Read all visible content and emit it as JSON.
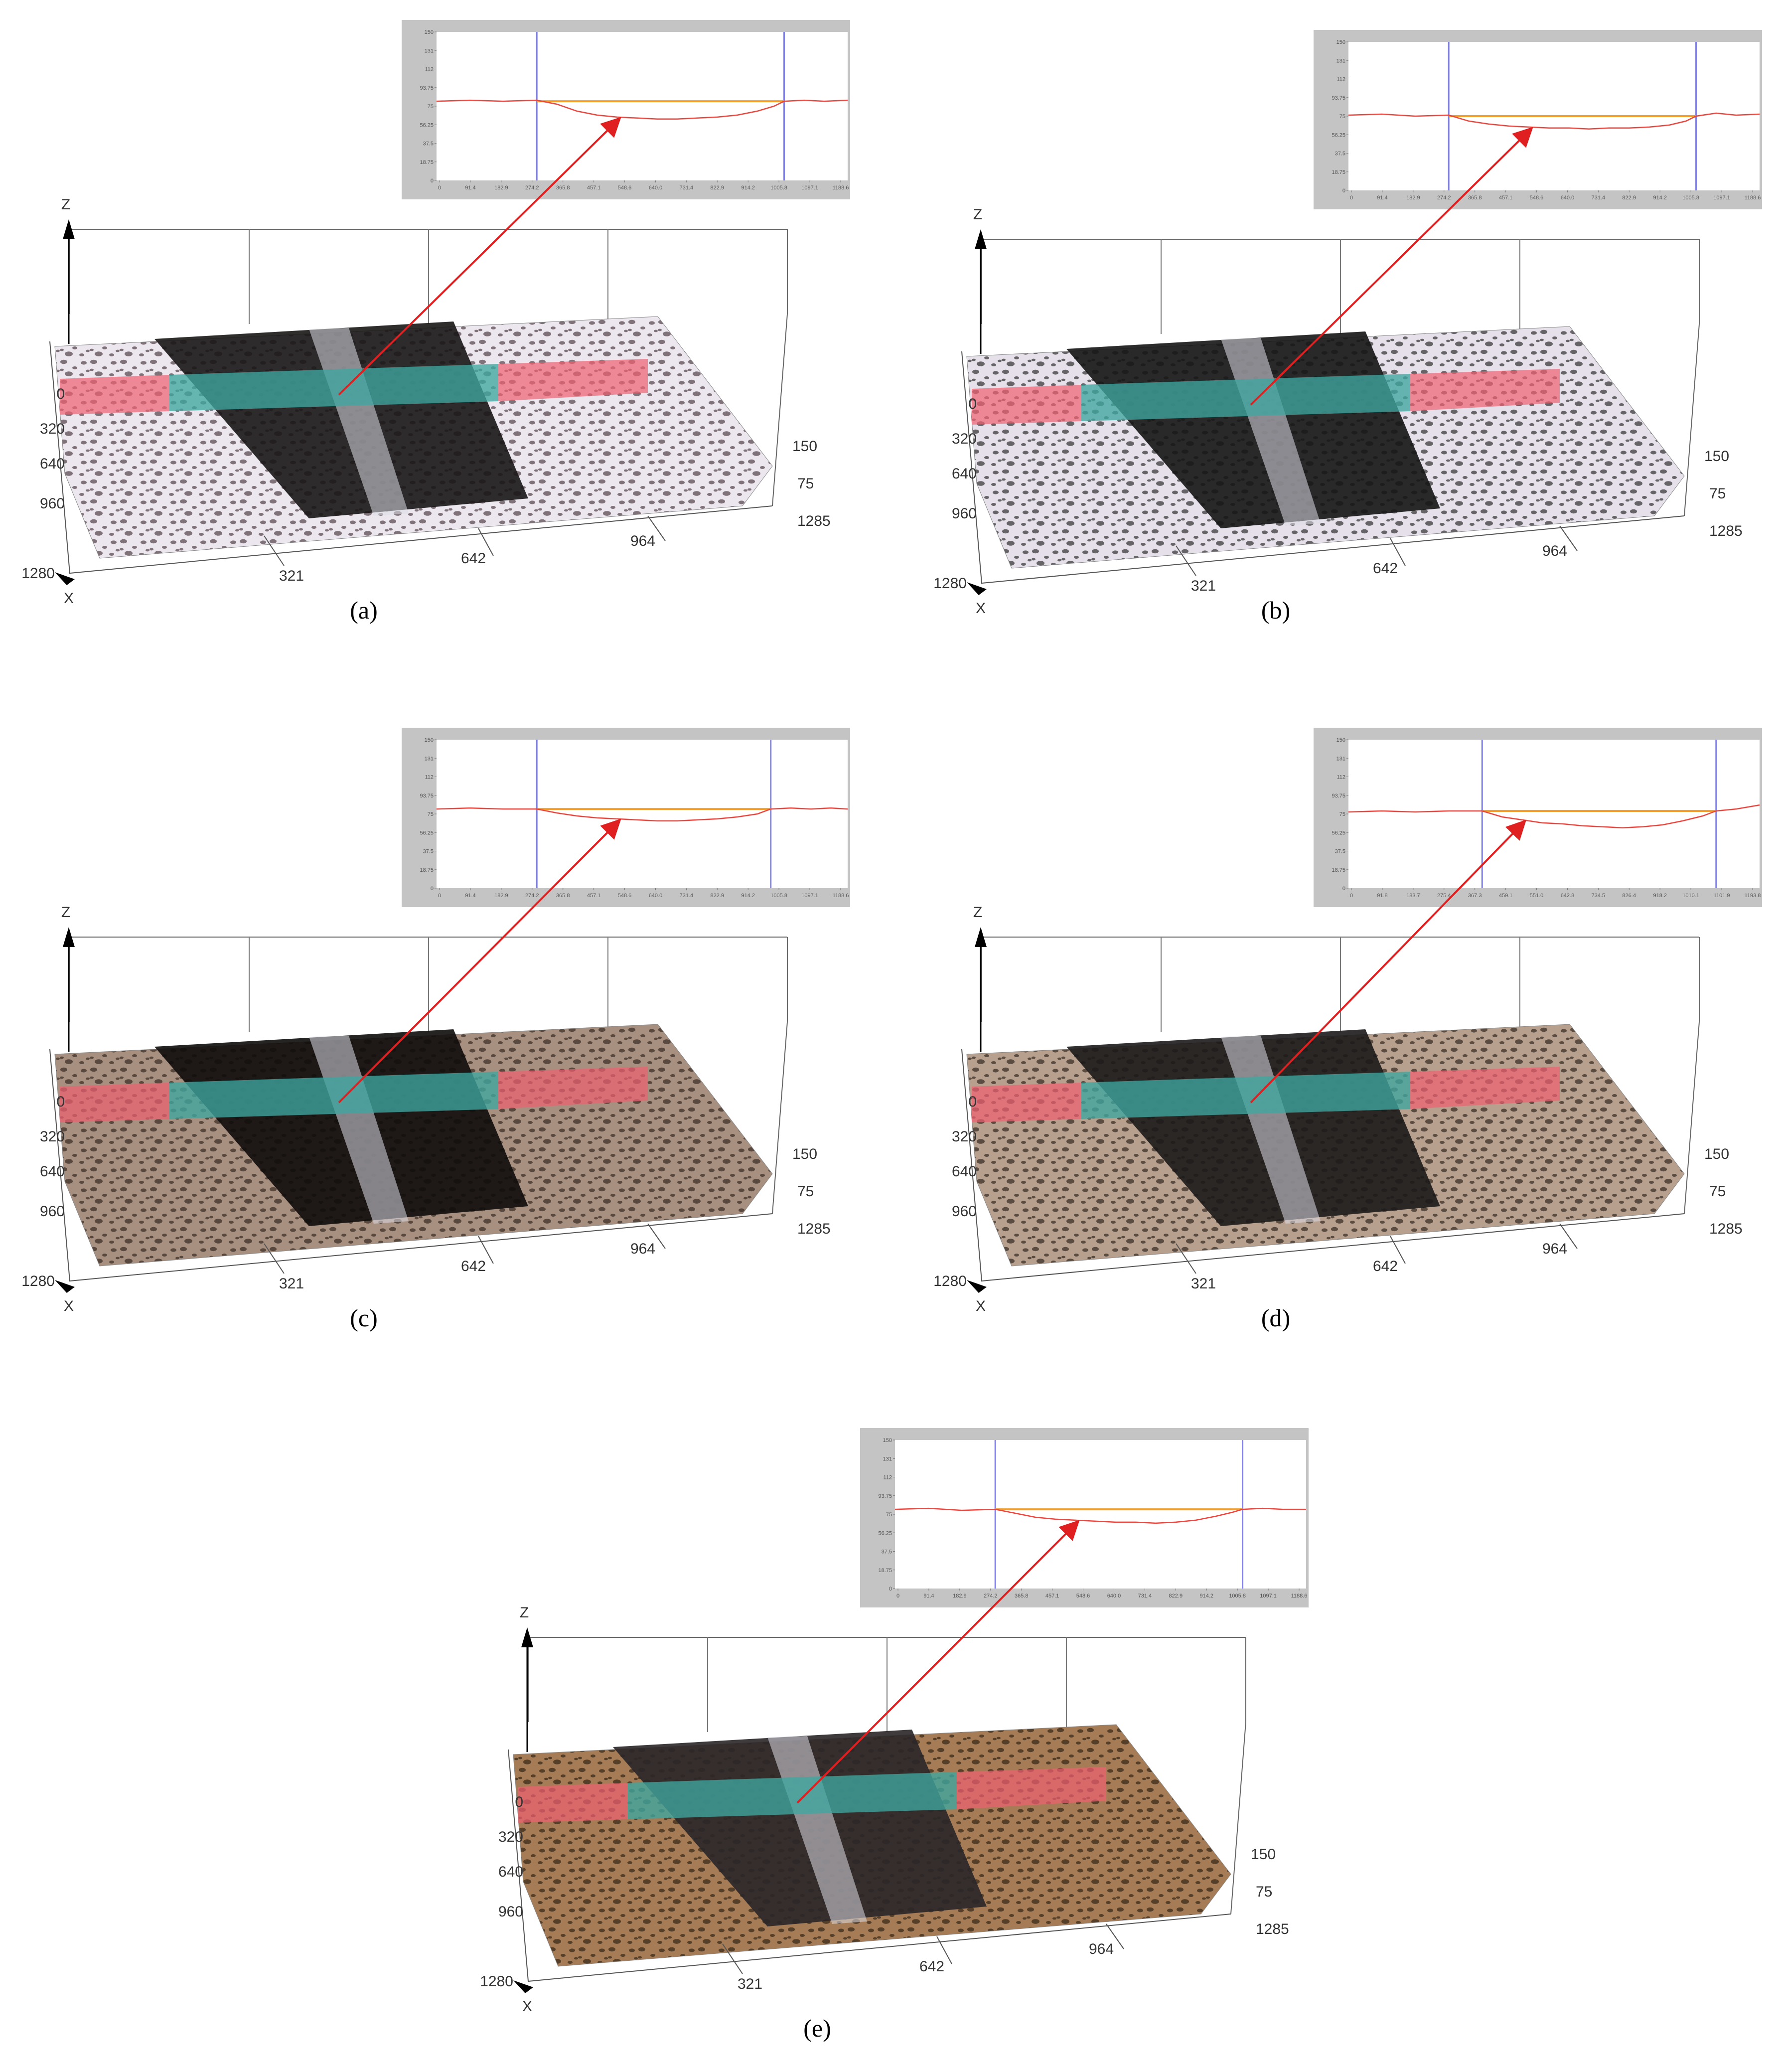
{
  "panels": [
    {
      "id": "a",
      "caption": "(a)",
      "surface": {
        "type": "3d-surface",
        "z_axis_label": "Z",
        "x_axis_label": "X",
        "x_ticks": [
          "0",
          "320",
          "640",
          "960",
          "1280"
        ],
        "y_ticks": [
          "321",
          "642",
          "964",
          "1285"
        ],
        "z_ticks": [
          "150",
          "75"
        ],
        "texture": "white-with-dark-wear-track"
      },
      "profile_chart": {
        "type": "line",
        "y_ticks": [
          "150",
          "131",
          "112",
          "93.75",
          "75",
          "56.25",
          "37.5",
          "18.75",
          "0"
        ],
        "x_ticks": [
          "0",
          "91.4",
          "182.9",
          "274.2",
          "365.8",
          "457.1",
          "548.6",
          "640.0",
          "731.4",
          "822.9",
          "914.2",
          "1005.8",
          "1097.1",
          "1188.6"
        ],
        "ylim": [
          0,
          150
        ],
        "xlim": [
          0,
          1230
        ],
        "marker_x": [
          300,
          1040
        ],
        "reference_level": 80,
        "series": [
          {
            "x": [
              0,
              100,
              200,
              300,
              360,
              420,
              480,
              540,
              600,
              660,
              720,
              780,
              840,
              900,
              960,
              1010,
              1040,
              1100,
              1160,
              1230
            ],
            "y": [
              80,
              81,
              80,
              81,
              77,
              70,
              66,
              64,
              63,
              62,
              62,
              63,
              64,
              66,
              70,
              75,
              80,
              81,
              80,
              81
            ]
          }
        ]
      }
    },
    {
      "id": "b",
      "caption": "(b)",
      "surface": {
        "type": "3d-surface",
        "z_axis_label": "Z",
        "x_axis_label": "X",
        "x_ticks": [
          "0",
          "320",
          "640",
          "960",
          "1280"
        ],
        "y_ticks": [
          "321",
          "642",
          "964",
          "1285"
        ],
        "z_ticks": [
          "150",
          "75"
        ],
        "texture": "speckled-with-dark-wear-track"
      },
      "profile_chart": {
        "type": "line",
        "y_ticks": [
          "150",
          "131",
          "112",
          "93.75",
          "75",
          "56.25",
          "37.5",
          "18.75",
          "0"
        ],
        "x_ticks": [
          "0",
          "91.4",
          "182.9",
          "274.2",
          "365.8",
          "457.1",
          "548.6",
          "640.0",
          "731.4",
          "822.9",
          "914.2",
          "1005.8",
          "1097.1",
          "1188.6"
        ],
        "ylim": [
          0,
          150
        ],
        "xlim": [
          0,
          1230
        ],
        "marker_x": [
          300,
          1040
        ],
        "reference_level": 75,
        "series": [
          {
            "x": [
              0,
              100,
              200,
              300,
              360,
              420,
              480,
              540,
              600,
              660,
              720,
              780,
              840,
              900,
              960,
              1010,
              1040,
              1100,
              1160,
              1230
            ],
            "y": [
              76,
              77,
              75,
              76,
              70,
              67,
              65,
              64,
              63,
              63,
              62,
              63,
              63,
              64,
              66,
              70,
              75,
              78,
              76,
              77
            ]
          }
        ]
      }
    },
    {
      "id": "c",
      "caption": "(c)",
      "surface": {
        "type": "3d-surface",
        "z_axis_label": "Z",
        "x_axis_label": "X",
        "x_ticks": [
          "0",
          "320",
          "640",
          "960",
          "1280"
        ],
        "y_ticks": [
          "321",
          "642",
          "964",
          "1285"
        ],
        "z_ticks": [
          "150",
          "75"
        ],
        "texture": "rough-with-black-wear-track"
      },
      "profile_chart": {
        "type": "line",
        "y_ticks": [
          "150",
          "131",
          "112",
          "93.75",
          "75",
          "56.25",
          "37.5",
          "18.75",
          "0"
        ],
        "x_ticks": [
          "0",
          "91.4",
          "182.9",
          "274.2",
          "365.8",
          "457.1",
          "548.6",
          "640.0",
          "731.4",
          "822.9",
          "914.2",
          "1005.8",
          "1097.1",
          "1188.6"
        ],
        "ylim": [
          0,
          150
        ],
        "xlim": [
          0,
          1230
        ],
        "marker_x": [
          300,
          1000
        ],
        "reference_level": 80,
        "series": [
          {
            "x": [
              0,
              100,
              200,
              300,
              360,
              420,
              480,
              540,
              600,
              660,
              720,
              780,
              840,
              900,
              960,
              1000,
              1060,
              1120,
              1180,
              1230
            ],
            "y": [
              80,
              81,
              80,
              80,
              76,
              73,
              71,
              70,
              69,
              68,
              68,
              69,
              70,
              72,
              75,
              80,
              81,
              80,
              81,
              80
            ]
          }
        ]
      }
    },
    {
      "id": "d",
      "caption": "(d)",
      "surface": {
        "type": "3d-surface",
        "z_axis_label": "Z",
        "x_axis_label": "X",
        "x_ticks": [
          "0",
          "320",
          "640",
          "960",
          "1280"
        ],
        "y_ticks": [
          "321",
          "642",
          "964",
          "1285"
        ],
        "z_ticks": [
          "150",
          "75"
        ],
        "texture": "rough-with-dark-wear-track"
      },
      "profile_chart": {
        "type": "line",
        "y_ticks": [
          "150",
          "131",
          "112",
          "93.75",
          "75",
          "56.25",
          "37.5",
          "18.75",
          "0"
        ],
        "x_ticks": [
          "0",
          "91.8",
          "183.7",
          "275.4",
          "367.3",
          "459.1",
          "551.0",
          "642.8",
          "734.5",
          "826.4",
          "918.2",
          "1010.1",
          "1101.9",
          "1193.8"
        ],
        "ylim": [
          0,
          150
        ],
        "xlim": [
          0,
          1230
        ],
        "marker_x": [
          400,
          1100
        ],
        "reference_level": 78,
        "series": [
          {
            "x": [
              0,
              100,
              200,
              300,
              400,
              460,
              520,
              580,
              640,
              700,
              760,
              820,
              880,
              940,
              1000,
              1060,
              1100,
              1160,
              1230
            ],
            "y": [
              77,
              78,
              77,
              78,
              78,
              72,
              69,
              66,
              65,
              63,
              62,
              61,
              62,
              64,
              68,
              73,
              78,
              80,
              84
            ]
          }
        ]
      }
    },
    {
      "id": "e",
      "caption": "(e)",
      "surface": {
        "type": "3d-surface",
        "z_axis_label": "Z",
        "x_axis_label": "X",
        "x_ticks": [
          "0",
          "320",
          "640",
          "960",
          "1280"
        ],
        "y_ticks": [
          "321",
          "642",
          "964",
          "1285"
        ],
        "z_ticks": [
          "150",
          "75"
        ],
        "texture": "brown-with-striated-wear-track"
      },
      "profile_chart": {
        "type": "line",
        "y_ticks": [
          "150",
          "131",
          "112",
          "93.75",
          "75",
          "56.25",
          "37.5",
          "18.75",
          "0"
        ],
        "x_ticks": [
          "0",
          "91.4",
          "182.9",
          "274.2",
          "365.8",
          "457.1",
          "548.6",
          "640.0",
          "731.4",
          "822.9",
          "914.2",
          "1005.8",
          "1097.1",
          "1188.6"
        ],
        "ylim": [
          0,
          150
        ],
        "xlim": [
          0,
          1230
        ],
        "marker_x": [
          300,
          1040
        ],
        "reference_level": 80,
        "series": [
          {
            "x": [
              0,
              100,
              200,
              300,
              360,
              420,
              480,
              540,
              600,
              660,
              720,
              780,
              840,
              900,
              960,
              1010,
              1040,
              1100,
              1160,
              1230
            ],
            "y": [
              80,
              81,
              79,
              80,
              76,
              72,
              70,
              69,
              68,
              67,
              67,
              66,
              67,
              69,
              73,
              77,
              80,
              81,
              80,
              80
            ]
          }
        ]
      }
    }
  ],
  "colors": {
    "profile_line": "#e8473f",
    "reference_line": "#f0a030",
    "marker_line": "#8080e0",
    "callout_arrow": "#e02020",
    "band_outside": "#f06070",
    "band_inside": "#3fa6a0",
    "chart_gray": "#c4c4c4"
  }
}
